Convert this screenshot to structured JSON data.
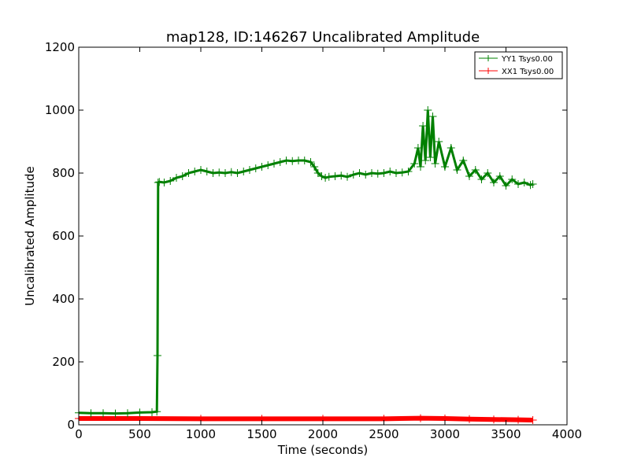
{
  "chart_data": {
    "type": "line",
    "title": "map128, ID:146267 Uncalibrated Amplitude",
    "xlabel": "Time (seconds)",
    "ylabel": "Uncalibrated Amplitude",
    "xlim": [
      0,
      4000
    ],
    "ylim": [
      0,
      1200
    ],
    "xticks": [
      0,
      500,
      1000,
      1500,
      2000,
      2500,
      3000,
      3500,
      4000
    ],
    "yticks": [
      0,
      200,
      400,
      600,
      800,
      1000,
      1200
    ],
    "grid": false,
    "legend_position": "top-right",
    "series": [
      {
        "name": "YY1 Tsys0.00",
        "color": "#008000",
        "marker": "+",
        "x": [
          0,
          100,
          200,
          300,
          400,
          500,
          600,
          640,
          645,
          650,
          660,
          700,
          750,
          800,
          850,
          900,
          950,
          1000,
          1050,
          1100,
          1150,
          1200,
          1250,
          1300,
          1350,
          1400,
          1450,
          1500,
          1550,
          1600,
          1650,
          1700,
          1750,
          1800,
          1850,
          1900,
          1930,
          1960,
          1990,
          2020,
          2050,
          2100,
          2150,
          2200,
          2250,
          2300,
          2350,
          2400,
          2450,
          2500,
          2550,
          2600,
          2650,
          2700,
          2750,
          2780,
          2800,
          2820,
          2840,
          2860,
          2880,
          2900,
          2920,
          2950,
          3000,
          3050,
          3100,
          3150,
          3200,
          3250,
          3300,
          3350,
          3400,
          3450,
          3500,
          3550,
          3600,
          3650,
          3700,
          3720
        ],
        "y": [
          38,
          37,
          37,
          36,
          37,
          39,
          40,
          42,
          220,
          770,
          772,
          770,
          775,
          785,
          790,
          800,
          805,
          810,
          805,
          800,
          802,
          800,
          803,
          800,
          805,
          810,
          815,
          820,
          825,
          830,
          835,
          840,
          838,
          840,
          840,
          835,
          820,
          800,
          790,
          785,
          788,
          790,
          792,
          788,
          795,
          800,
          795,
          800,
          798,
          800,
          805,
          800,
          802,
          805,
          830,
          880,
          820,
          950,
          840,
          1000,
          850,
          980,
          830,
          900,
          820,
          880,
          810,
          840,
          790,
          810,
          780,
          800,
          770,
          790,
          760,
          780,
          765,
          770,
          762,
          765
        ]
      },
      {
        "name": "XX1 Tsys0.00",
        "color": "#ff0000",
        "marker": "+",
        "x": [
          0,
          500,
          1000,
          1500,
          2000,
          2500,
          2800,
          3000,
          3200,
          3400,
          3600,
          3720
        ],
        "y": [
          20,
          20,
          19,
          19,
          19,
          19,
          21,
          20,
          18,
          17,
          16,
          15
        ]
      }
    ]
  }
}
